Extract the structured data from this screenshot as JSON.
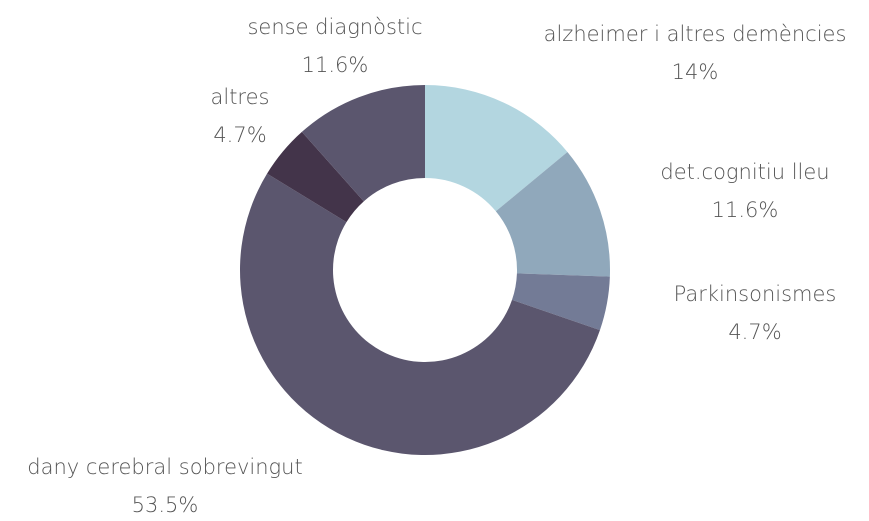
{
  "chart_data": {
    "type": "donut",
    "categories": [
      "alzheimer i altres demències",
      "det.cognitiu lleu",
      "Parkinsonismes",
      "dany cerebral sobrevingut",
      "altres",
      "sense diagnòstic"
    ],
    "values": [
      14,
      11.6,
      4.7,
      53.5,
      4.7,
      11.6
    ],
    "value_labels": [
      "14%",
      "11.6%",
      "4.7%",
      "53.5%",
      "4.7%",
      "11.6%"
    ],
    "colors": [
      "#b3d6e0",
      "#90a8bb",
      "#737b96",
      "#5b566e",
      "#43344a",
      "#5b566e"
    ]
  }
}
